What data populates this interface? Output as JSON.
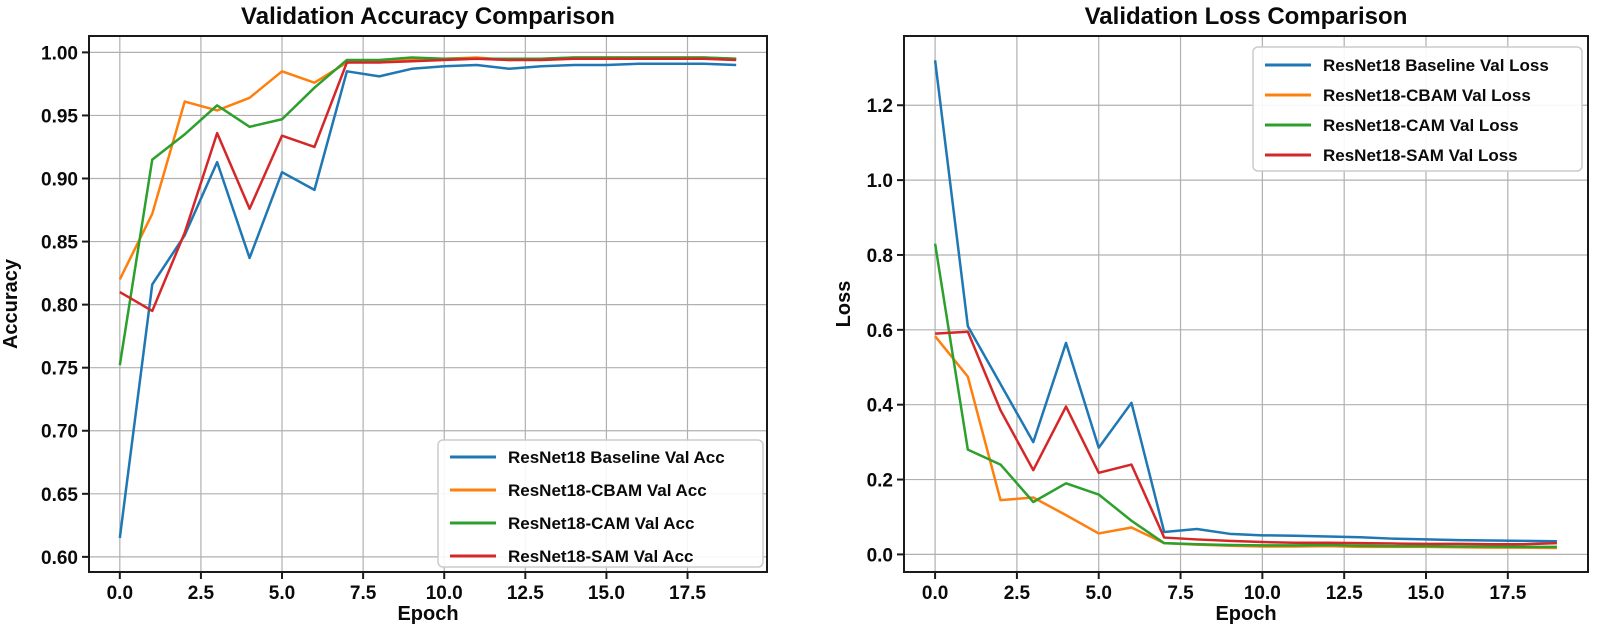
{
  "figure": {
    "background_color": "#ffffff",
    "grid_color": "#b0b0b0",
    "spine_color": "#1a1a1a",
    "legend_border_color": "#cccccc"
  },
  "chart_data": [
    {
      "type": "line",
      "title": "Validation Accuracy Comparison",
      "xlabel": "Epoch",
      "ylabel": "Accuracy",
      "grid": true,
      "legend_position": "lower right",
      "x": [
        0,
        1,
        2,
        3,
        4,
        5,
        6,
        7,
        8,
        9,
        10,
        11,
        12,
        13,
        14,
        15,
        16,
        17,
        18,
        19
      ],
      "xlim": [
        -0.95,
        19.95
      ],
      "ylim": [
        0.588,
        1.013
      ],
      "xticks": [
        0,
        2.5,
        5,
        7.5,
        10,
        12.5,
        15,
        17.5
      ],
      "xtick_labels": [
        "0.0",
        "2.5",
        "5.0",
        "7.5",
        "10.0",
        "12.5",
        "15.0",
        "17.5"
      ],
      "yticks": [
        0.6,
        0.65,
        0.7,
        0.75,
        0.8,
        0.85,
        0.9,
        0.95,
        1.0
      ],
      "ytick_labels": [
        "0.60",
        "0.65",
        "0.70",
        "0.75",
        "0.80",
        "0.85",
        "0.90",
        "0.95",
        "1.00"
      ],
      "series": [
        {
          "name": "ResNet18 Baseline Val Acc",
          "color": "#1f77b4",
          "values": [
            0.615,
            0.816,
            0.855,
            0.913,
            0.837,
            0.905,
            0.891,
            0.985,
            0.981,
            0.987,
            0.989,
            0.99,
            0.987,
            0.989,
            0.99,
            0.99,
            0.991,
            0.991,
            0.991,
            0.99
          ]
        },
        {
          "name": "ResNet18-CBAM Val Acc",
          "color": "#ff7f0e",
          "values": [
            0.82,
            0.872,
            0.961,
            0.954,
            0.964,
            0.985,
            0.976,
            0.992,
            0.993,
            0.995,
            0.995,
            0.996,
            0.994,
            0.995,
            0.996,
            0.996,
            0.996,
            0.996,
            0.996,
            0.995
          ]
        },
        {
          "name": "ResNet18-CAM Val Acc",
          "color": "#2ca02c",
          "values": [
            0.752,
            0.915,
            0.935,
            0.958,
            0.941,
            0.947,
            0.972,
            0.994,
            0.994,
            0.996,
            0.995,
            0.995,
            0.995,
            0.995,
            0.996,
            0.996,
            0.996,
            0.996,
            0.996,
            0.995
          ]
        },
        {
          "name": "ResNet18-SAM Val Acc",
          "color": "#d62728",
          "values": [
            0.81,
            0.795,
            0.857,
            0.936,
            0.876,
            0.934,
            0.925,
            0.992,
            0.992,
            0.993,
            0.994,
            0.995,
            0.994,
            0.994,
            0.995,
            0.995,
            0.995,
            0.995,
            0.995,
            0.994
          ]
        }
      ]
    },
    {
      "type": "line",
      "title": "Validation Loss Comparison",
      "xlabel": "Epoch",
      "ylabel": "Loss",
      "grid": true,
      "legend_position": "upper right",
      "x": [
        0,
        1,
        2,
        3,
        4,
        5,
        6,
        7,
        8,
        9,
        10,
        11,
        12,
        13,
        14,
        15,
        16,
        17,
        18,
        19
      ],
      "xlim": [
        -0.95,
        19.95
      ],
      "ylim": [
        -0.047,
        1.385
      ],
      "xticks": [
        0,
        2.5,
        5,
        7.5,
        10,
        12.5,
        15,
        17.5
      ],
      "xtick_labels": [
        "0.0",
        "2.5",
        "5.0",
        "7.5",
        "10.0",
        "12.5",
        "15.0",
        "17.5"
      ],
      "yticks": [
        0.0,
        0.2,
        0.4,
        0.6,
        0.8,
        1.0,
        1.2
      ],
      "ytick_labels": [
        "0.0",
        "0.2",
        "0.4",
        "0.6",
        "0.8",
        "1.0",
        "1.2"
      ],
      "series": [
        {
          "name": "ResNet18 Baseline Val Loss",
          "color": "#1f77b4",
          "values": [
            1.32,
            0.61,
            0.455,
            0.3,
            0.565,
            0.285,
            0.405,
            0.06,
            0.068,
            0.055,
            0.051,
            0.05,
            0.048,
            0.046,
            0.042,
            0.04,
            0.038,
            0.037,
            0.036,
            0.035
          ]
        },
        {
          "name": "ResNet18-CBAM Val Loss",
          "color": "#ff7f0e",
          "values": [
            0.583,
            0.475,
            0.145,
            0.152,
            0.105,
            0.056,
            0.072,
            0.03,
            0.026,
            0.023,
            0.021,
            0.021,
            0.022,
            0.02,
            0.02,
            0.02,
            0.019,
            0.018,
            0.018,
            0.017
          ]
        },
        {
          "name": "ResNet18-CAM Val Loss",
          "color": "#2ca02c",
          "values": [
            0.83,
            0.28,
            0.24,
            0.14,
            0.19,
            0.16,
            0.09,
            0.03,
            0.027,
            0.025,
            0.024,
            0.024,
            0.025,
            0.023,
            0.022,
            0.022,
            0.021,
            0.021,
            0.02,
            0.02
          ]
        },
        {
          "name": "ResNet18-SAM Val Loss",
          "color": "#d62728",
          "values": [
            0.59,
            0.595,
            0.385,
            0.225,
            0.395,
            0.218,
            0.24,
            0.045,
            0.04,
            0.036,
            0.033,
            0.031,
            0.031,
            0.03,
            0.029,
            0.028,
            0.028,
            0.027,
            0.027,
            0.03
          ]
        }
      ]
    }
  ]
}
